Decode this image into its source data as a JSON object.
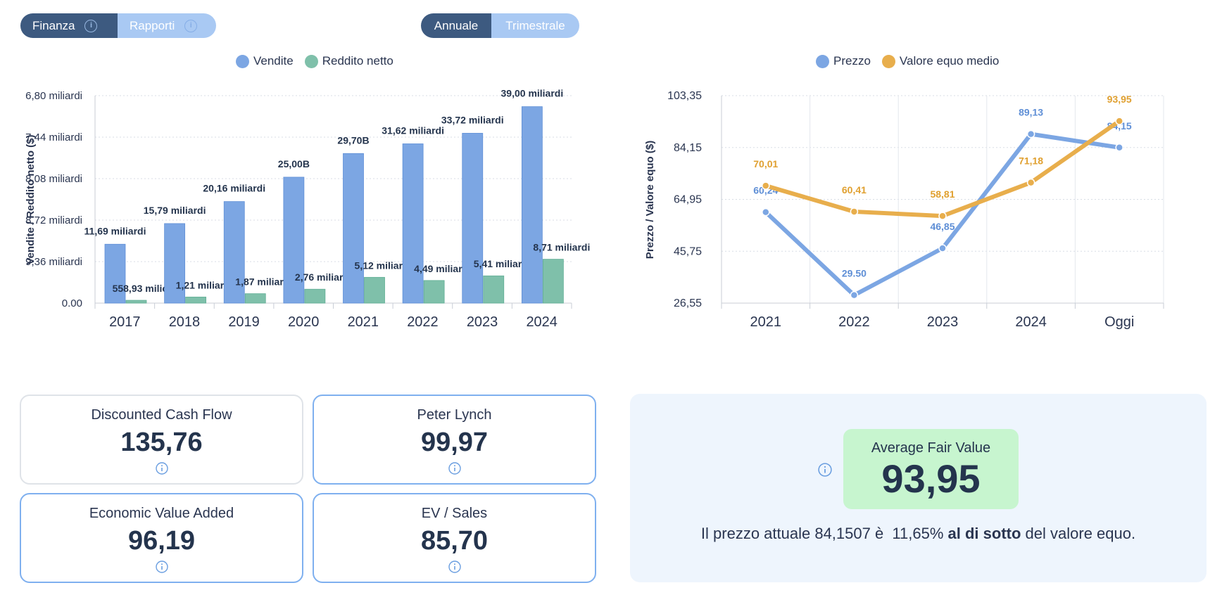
{
  "tabs": {
    "left": [
      {
        "label": "Finanza",
        "active": true
      },
      {
        "label": "Rapporti",
        "active": false
      }
    ],
    "period": [
      {
        "label": "Annuale",
        "active": true
      },
      {
        "label": "Trimestrale",
        "active": false
      }
    ]
  },
  "colors": {
    "sales": "#7ca6e3",
    "net_income": "#7fc0aa",
    "price": "#7ca6e3",
    "fair_value": "#e8ae4c",
    "accent": "#3d5a80"
  },
  "chart_data": [
    {
      "type": "bar",
      "title": "",
      "ylabel": "Vendite / Reddito netto ($)",
      "categories": [
        "2017",
        "2018",
        "2019",
        "2020",
        "2021",
        "2022",
        "2023",
        "2024"
      ],
      "series": [
        {
          "name": "Vendite",
          "values": [
            11.69,
            15.79,
            20.16,
            25.0,
            29.7,
            31.62,
            33.72,
            39.0
          ],
          "labels": [
            "11,69 miliardi",
            "15,79 miliardi",
            "20,16 miliardi",
            "25,00B",
            "29,70B",
            "31,62 miliardi",
            "33,72 miliardi",
            "39,00 miliardi"
          ]
        },
        {
          "name": "Reddito netto",
          "values": [
            0.559,
            1.21,
            1.87,
            2.76,
            5.12,
            4.49,
            5.41,
            8.71
          ],
          "labels": [
            "558,93 milioni",
            "1,21 miliardi",
            "1,87 miliardi",
            "2,76 miliardi",
            "5,12 miliardi",
            "4,49 miliardi",
            "5,41 miliardi",
            "8,71 miliardi"
          ]
        }
      ],
      "yticks": [
        "0.00",
        "9,36 miliardi",
        "8,72 miliardi",
        "8,08 miliardi",
        "7,44 miliardi",
        "6,80 miliardi"
      ],
      "ylim": [
        0,
        39.0
      ],
      "legend": "top-center",
      "grid": true
    },
    {
      "type": "line",
      "title": "",
      "ylabel": "Prezzo / Valore equo ($)",
      "categories": [
        "2021",
        "2022",
        "2023",
        "2024",
        "Oggi"
      ],
      "series": [
        {
          "name": "Prezzo",
          "values": [
            60.24,
            29.5,
            46.85,
            89.13,
            84.15
          ],
          "labels": [
            "60,24",
            "29.50",
            "46,85",
            "89,13",
            "84,15"
          ]
        },
        {
          "name": "Valore equo medio",
          "values": [
            70.01,
            60.41,
            58.81,
            71.18,
            93.95
          ],
          "labels": [
            "70,01",
            "60,41",
            "58,81",
            "71,18",
            "93,95"
          ]
        }
      ],
      "yticks": [
        "26,55",
        "45,75",
        "64,95",
        "84,15",
        "103,35"
      ],
      "ylim": [
        26.55,
        103.35
      ],
      "legend": "top-center",
      "grid": true
    }
  ],
  "cards": [
    {
      "title": "Discounted Cash Flow",
      "value": "135,76"
    },
    {
      "title": "Peter Lynch",
      "value": "99,97"
    },
    {
      "title": "Economic Value Added",
      "value": "96,19"
    },
    {
      "title": "EV / Sales",
      "value": "85,70"
    }
  ],
  "fair_value": {
    "title": "Average Fair Value",
    "value": "93,95",
    "text_pre": "Il prezzo attuale 84,1507 è  11,65% ",
    "text_bold": "al di sotto",
    "text_post": " del valore equo."
  }
}
